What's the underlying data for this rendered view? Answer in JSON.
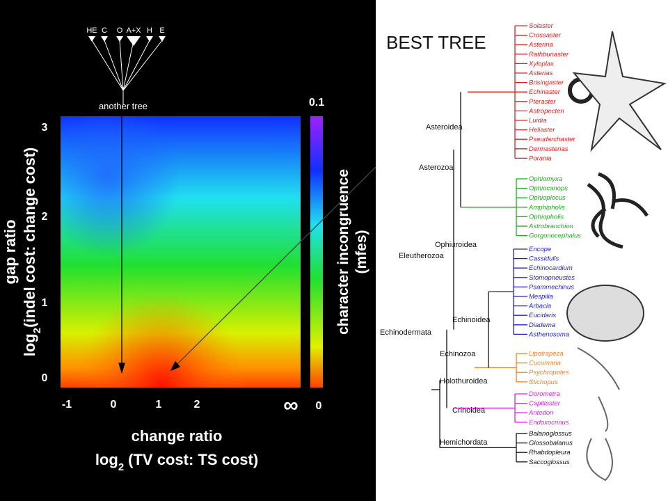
{
  "left_panel": {
    "mini_tree_labels": [
      "HE",
      "C",
      "O",
      "A+X",
      "H",
      "E"
    ],
    "mini_tree_caption": "another tree",
    "colorbar": {
      "max_label": "0.1",
      "min_label": "0",
      "title": "character incongruence",
      "unit": "(mfes)"
    },
    "x_ticks": [
      "-1",
      "0",
      "1",
      "2",
      "∞"
    ],
    "y_ticks": [
      "3",
      "2",
      "1",
      "0"
    ],
    "x_axis": {
      "title": "change ratio",
      "log_text": "log",
      "log_base": "2",
      "argument": "(TV cost: TS cost)"
    },
    "y_axis": {
      "title": "gap ratio",
      "log_text": "log",
      "log_base": "2",
      "argument": "(indel cost: change cost)"
    }
  },
  "right_panel": {
    "title": "BEST TREE",
    "clades": [
      "Asteroidea",
      "Asterozoa",
      "Ophiuroidea",
      "Eleutherozoa",
      "Echinoidea",
      "Echinodermata",
      "Echinozoa",
      "Holothuroidea",
      "Crinoidea",
      "Hemichordata"
    ],
    "groups": [
      {
        "color": "#e02020",
        "taxa": [
          "Solaster",
          "Crossaster",
          "Asterina",
          "Rathbunaster",
          "Xyloplax",
          "Asterias",
          "Brisingaster",
          "Echinaster",
          "Pteraster",
          "Astropecten",
          "Luidia",
          "Heliaster",
          "Pseudarchaster",
          "Dermasterias",
          "Porania"
        ]
      },
      {
        "color": "#1faa1f",
        "taxa": [
          "Ophiomyxa",
          "Ophiocanops",
          "Ophioplocus",
          "Amphipholis",
          "Ophiopholis",
          "Astrobranchion",
          "Gorgonocephalus"
        ]
      },
      {
        "color": "#2020d0",
        "taxa": [
          "Encope",
          "Cassidulis",
          "Echinocardium",
          "Stomopneustes",
          "Psammechinus",
          "Mespilia",
          "Arbacia",
          "Eucidaris",
          "Diadema",
          "Asthenosoma"
        ]
      },
      {
        "color": "#f08020",
        "taxa": [
          "Lipotrapeza",
          "Cucumaria",
          "Psychropotes",
          "Stichopus"
        ]
      },
      {
        "color": "#e020e0",
        "taxa": [
          "Dorometra",
          "Capillaster",
          "Antedon",
          "Endoxocrinus"
        ]
      },
      {
        "color": "#111111",
        "taxa": [
          "Balanoglossus",
          "Glossobalanus",
          "Rhabdopleura",
          "Saccoglossus"
        ]
      }
    ]
  }
}
